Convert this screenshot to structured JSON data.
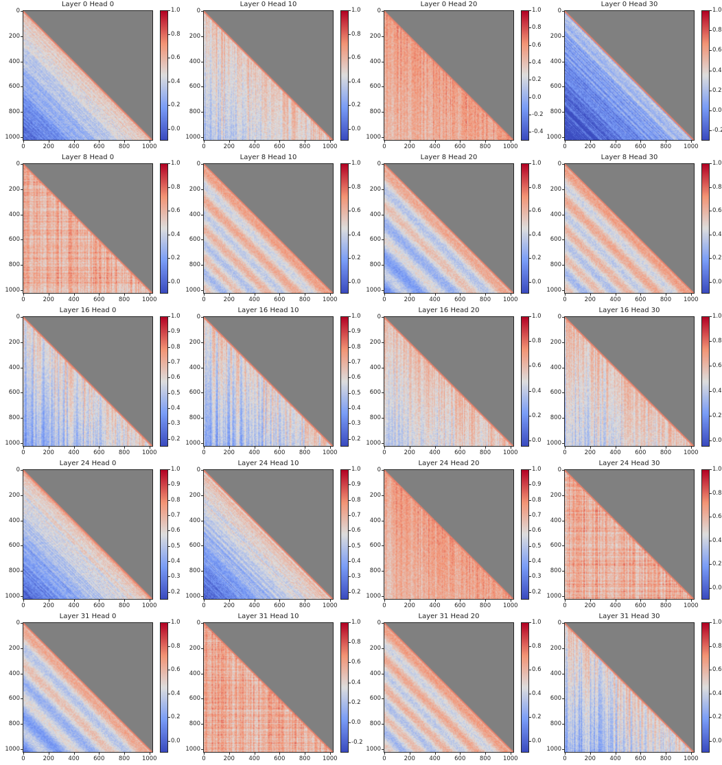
{
  "chart_data": [
    {
      "type": "heatmap",
      "title": "Layer 0 Head 0",
      "pattern": "diagonal-cool",
      "colorbar_ticks": [
        "0.0",
        "0.2",
        "0.4",
        "0.6",
        "0.8",
        "1.0"
      ],
      "vmin": -0.1,
      "vmax": 1.0
    },
    {
      "type": "heatmap",
      "title": "Layer 0 Head 10",
      "pattern": "mixed",
      "colorbar_ticks": [
        "0.0",
        "0.2",
        "0.4",
        "0.6",
        "0.8",
        "1.0"
      ],
      "vmin": -0.1,
      "vmax": 1.0
    },
    {
      "type": "heatmap",
      "title": "Layer 0 Head 20",
      "pattern": "warm-stripe",
      "colorbar_ticks": [
        "-0.4",
        "-0.2",
        "0.0",
        "0.2",
        "0.4",
        "0.6",
        "0.8",
        "1.0"
      ],
      "vmin": -0.5,
      "vmax": 1.0
    },
    {
      "type": "heatmap",
      "title": "Layer 0 Head 30",
      "pattern": "diagonal-very-cool",
      "colorbar_ticks": [
        "-0.2",
        "0.0",
        "0.2",
        "0.4",
        "0.6",
        "0.8",
        "1.0"
      ],
      "vmin": -0.3,
      "vmax": 1.0
    },
    {
      "type": "heatmap",
      "title": "Layer 8 Head 0",
      "pattern": "warm-grid",
      "colorbar_ticks": [
        "0.0",
        "0.2",
        "0.4",
        "0.6",
        "0.8",
        "1.0"
      ],
      "vmin": -0.1,
      "vmax": 1.0
    },
    {
      "type": "heatmap",
      "title": "Layer 8 Head 10",
      "pattern": "diagonal-bands",
      "colorbar_ticks": [
        "0.0",
        "0.2",
        "0.4",
        "0.6",
        "0.8",
        "1.0"
      ],
      "vmin": -0.1,
      "vmax": 1.0
    },
    {
      "type": "heatmap",
      "title": "Layer 8 Head 20",
      "pattern": "diagonal-bands-cool",
      "colorbar_ticks": [
        "0.0",
        "0.2",
        "0.4",
        "0.6",
        "0.8",
        "1.0"
      ],
      "vmin": -0.1,
      "vmax": 1.0
    },
    {
      "type": "heatmap",
      "title": "Layer 8 Head 30",
      "pattern": "diagonal-bands",
      "colorbar_ticks": [
        "0.0",
        "0.2",
        "0.4",
        "0.6",
        "0.8",
        "1.0"
      ],
      "vmin": -0.1,
      "vmax": 1.0
    },
    {
      "type": "heatmap",
      "title": "Layer 16 Head 0",
      "pattern": "mixed-cool",
      "colorbar_ticks": [
        "0.2",
        "0.3",
        "0.4",
        "0.5",
        "0.6",
        "0.7",
        "0.8",
        "0.9",
        "1.0"
      ],
      "vmin": 0.15,
      "vmax": 1.0
    },
    {
      "type": "heatmap",
      "title": "Layer 16 Head 10",
      "pattern": "mixed-cool",
      "colorbar_ticks": [
        "0.2",
        "0.3",
        "0.4",
        "0.5",
        "0.6",
        "0.7",
        "0.8",
        "0.9",
        "1.0"
      ],
      "vmin": 0.15,
      "vmax": 1.0
    },
    {
      "type": "heatmap",
      "title": "Layer 16 Head 20",
      "pattern": "mixed",
      "colorbar_ticks": [
        "0.0",
        "0.2",
        "0.4",
        "0.6",
        "0.8",
        "1.0"
      ],
      "vmin": -0.05,
      "vmax": 1.0
    },
    {
      "type": "heatmap",
      "title": "Layer 16 Head 30",
      "pattern": "mixed",
      "colorbar_ticks": [
        "0.0",
        "0.2",
        "0.4",
        "0.6",
        "0.8",
        "1.0"
      ],
      "vmin": -0.05,
      "vmax": 1.0
    },
    {
      "type": "heatmap",
      "title": "Layer 24 Head 0",
      "pattern": "diagonal-cool",
      "colorbar_ticks": [
        "0.2",
        "0.3",
        "0.4",
        "0.5",
        "0.6",
        "0.7",
        "0.8",
        "0.9",
        "1.0"
      ],
      "vmin": 0.15,
      "vmax": 1.0
    },
    {
      "type": "heatmap",
      "title": "Layer 24 Head 10",
      "pattern": "diagonal-cool",
      "colorbar_ticks": [
        "0.2",
        "0.3",
        "0.4",
        "0.5",
        "0.6",
        "0.7",
        "0.8",
        "0.9",
        "1.0"
      ],
      "vmin": 0.15,
      "vmax": 1.0
    },
    {
      "type": "heatmap",
      "title": "Layer 24 Head 20",
      "pattern": "warm-stripe",
      "colorbar_ticks": [
        "0.2",
        "0.3",
        "0.4",
        "0.5",
        "0.6",
        "0.7",
        "0.8",
        "0.9",
        "1.0"
      ],
      "vmin": 0.15,
      "vmax": 1.0
    },
    {
      "type": "heatmap",
      "title": "Layer 24 Head 30",
      "pattern": "warm-grid",
      "colorbar_ticks": [
        "0.0",
        "0.2",
        "0.4",
        "0.6",
        "0.8",
        "1.0"
      ],
      "vmin": -0.1,
      "vmax": 1.0
    },
    {
      "type": "heatmap",
      "title": "Layer 31 Head 0",
      "pattern": "diagonal-bands-cool",
      "colorbar_ticks": [
        "0.0",
        "0.2",
        "0.4",
        "0.6",
        "0.8",
        "1.0"
      ],
      "vmin": -0.1,
      "vmax": 1.0
    },
    {
      "type": "heatmap",
      "title": "Layer 31 Head 10",
      "pattern": "warm-grid",
      "colorbar_ticks": [
        "-0.2",
        "0.0",
        "0.2",
        "0.4",
        "0.6",
        "0.8",
        "1.0"
      ],
      "vmin": -0.3,
      "vmax": 1.0
    },
    {
      "type": "heatmap",
      "title": "Layer 31 Head 20",
      "pattern": "diagonal-bands",
      "colorbar_ticks": [
        "0.0",
        "0.2",
        "0.4",
        "0.6",
        "0.8",
        "1.0"
      ],
      "vmin": -0.1,
      "vmax": 1.0
    },
    {
      "type": "heatmap",
      "title": "Layer 31 Head 30",
      "pattern": "mixed-cool",
      "colorbar_ticks": [
        "0.0",
        "0.2",
        "0.4",
        "0.6",
        "0.8",
        "1.0"
      ],
      "vmin": -0.1,
      "vmax": 1.0
    }
  ],
  "axis": {
    "y_ticks": [
      "0",
      "200",
      "400",
      "600",
      "800",
      "1000"
    ],
    "x_ticks": [
      "0",
      "200",
      "400",
      "600",
      "800",
      "1000"
    ],
    "range": [
      0,
      1023
    ],
    "masked_color": "#808080"
  },
  "colormap": "coolwarm"
}
